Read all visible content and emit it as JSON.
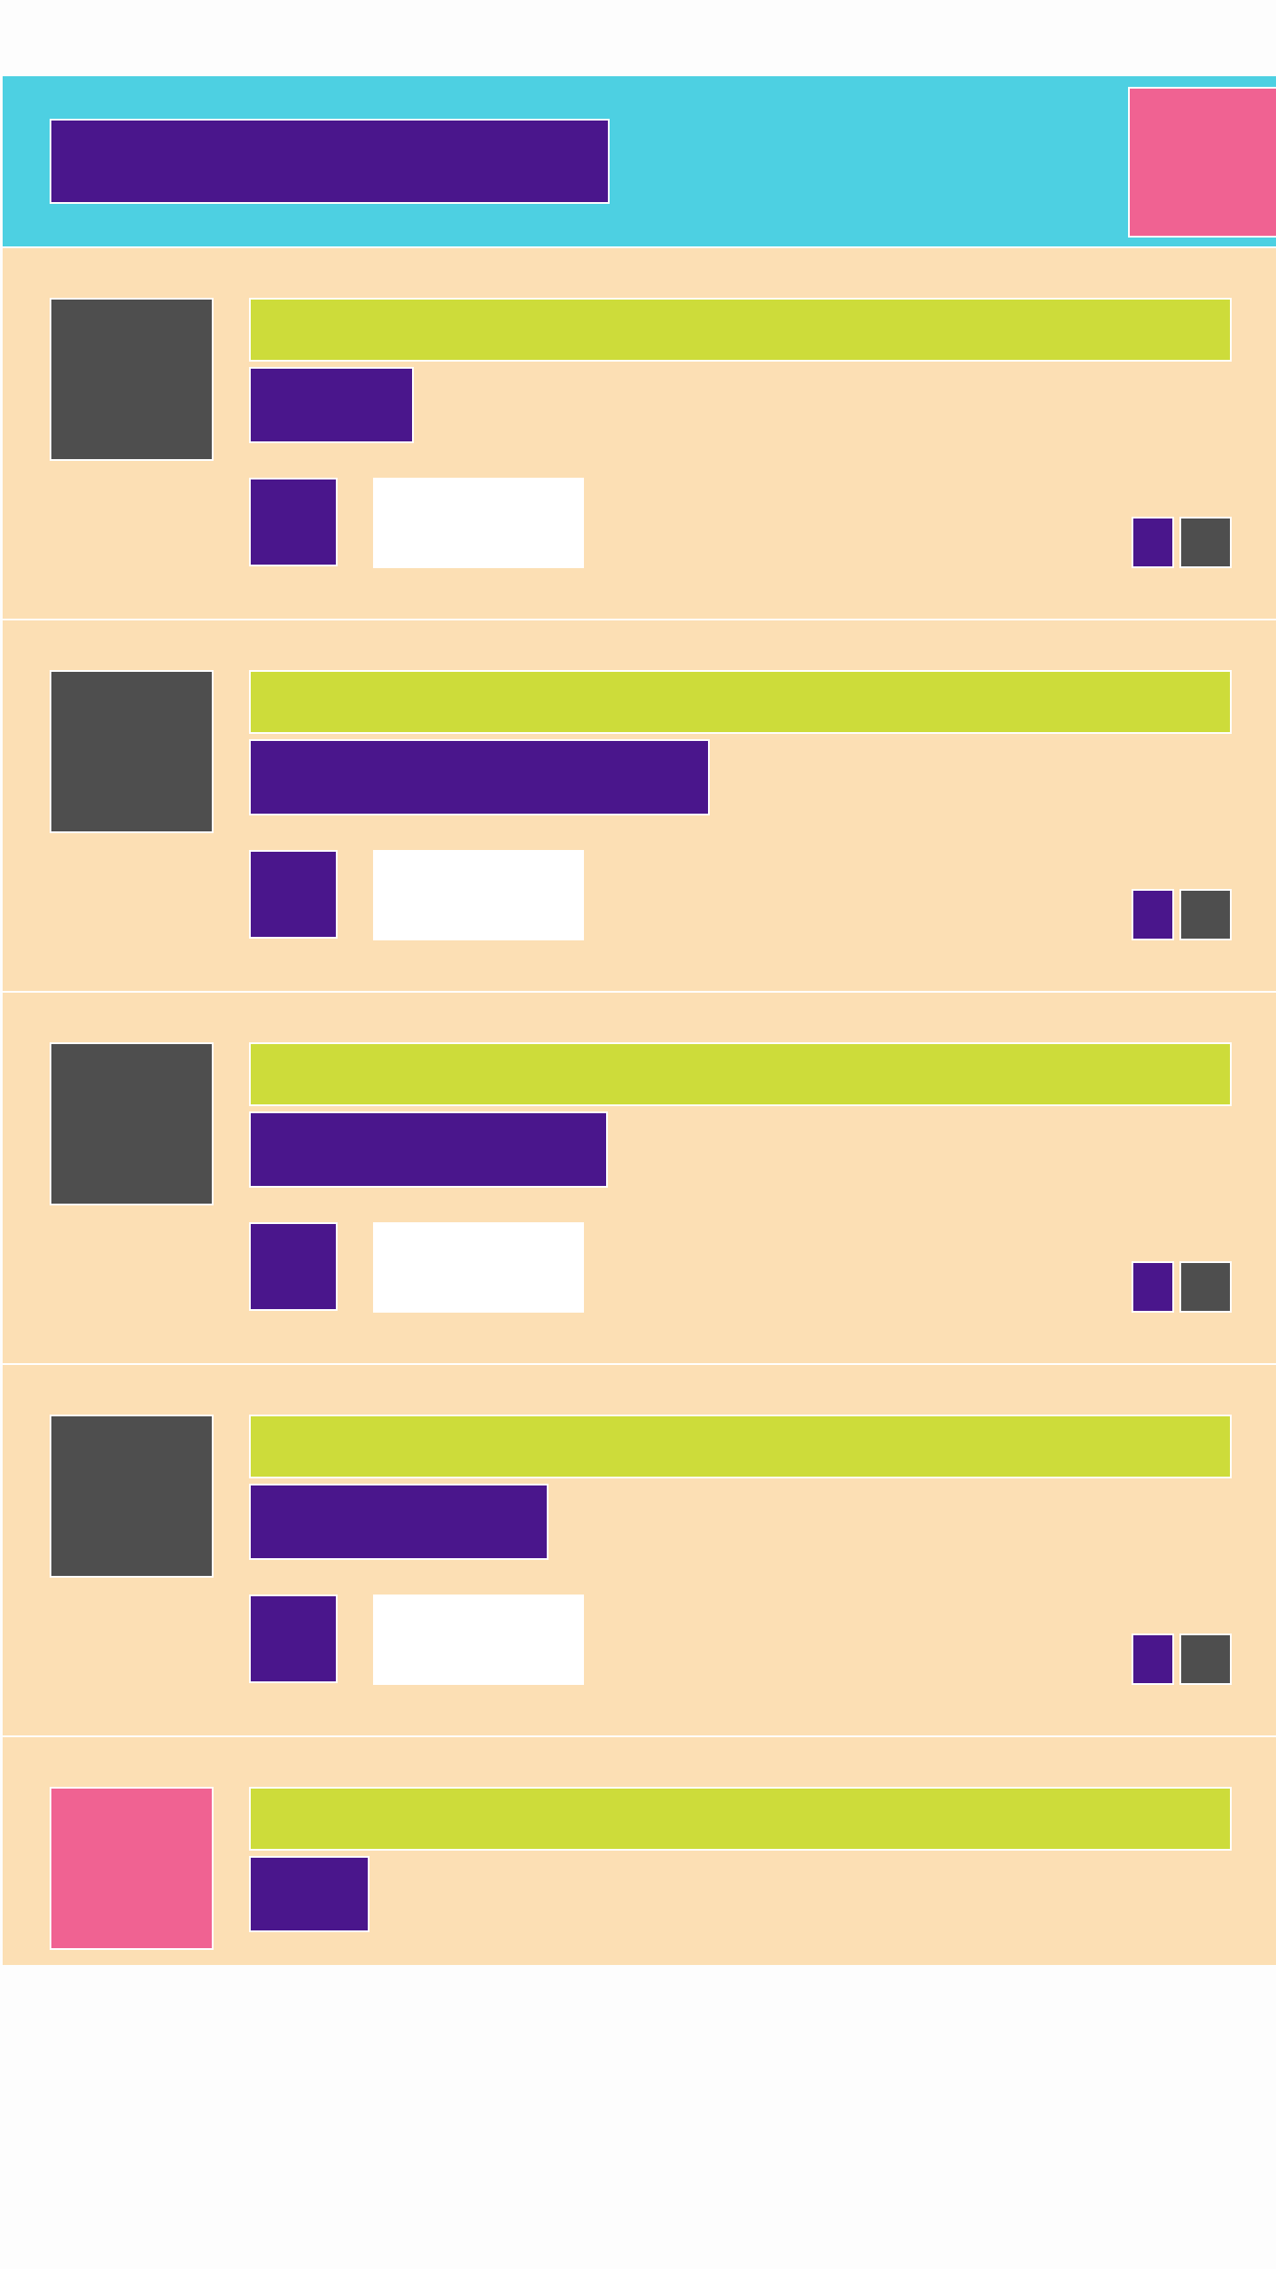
{
  "colors": {
    "header_bg": "#4dd0e2",
    "row_bg": "#fcdfb4",
    "purple": "#4a168c",
    "pink": "#f06292",
    "gray": "#4e4e4e",
    "lime": "#cddc3a",
    "page_bg": "#fdfdfd"
  },
  "header": {
    "title": "",
    "action_icon": "header-action-icon"
  },
  "feed": {
    "items": [
      {
        "title": "",
        "subtitle": "",
        "field_value": "",
        "avatar_icon": "avatar-placeholder-icon"
      },
      {
        "title": "",
        "subtitle": "",
        "field_value": "",
        "avatar_icon": "avatar-placeholder-icon"
      },
      {
        "title": "",
        "subtitle": "",
        "field_value": "",
        "avatar_icon": "avatar-placeholder-icon"
      },
      {
        "title": "",
        "subtitle": "",
        "field_value": "",
        "avatar_icon": "avatar-placeholder-icon"
      },
      {
        "title": "",
        "subtitle": "",
        "avatar_icon": "avatar-placeholder-icon"
      }
    ]
  }
}
